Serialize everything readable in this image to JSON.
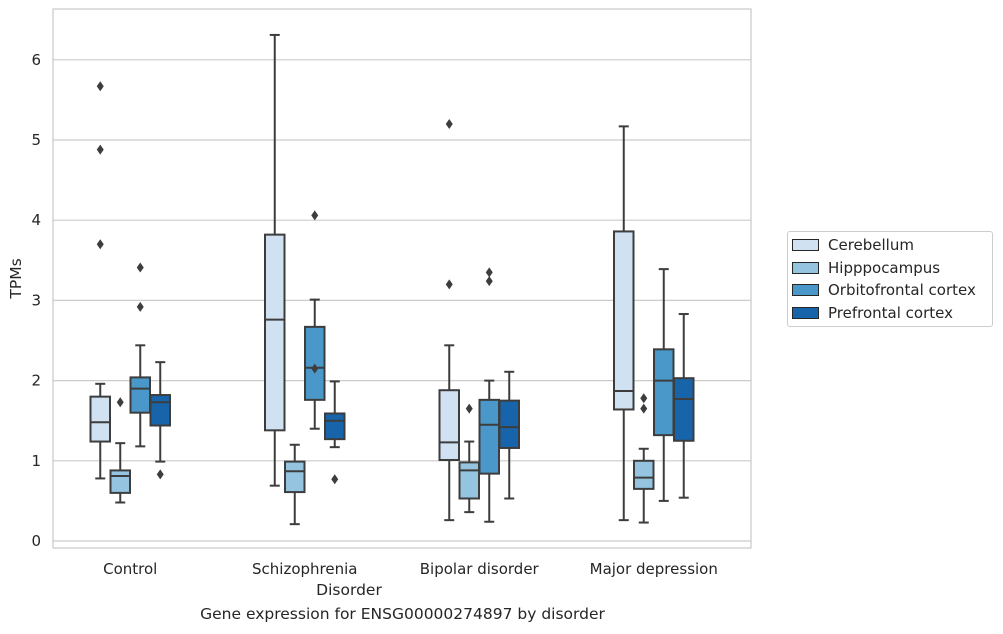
{
  "colors": {
    "Cerebellum": "#d0e1f2",
    "Hipppocampus": "#94c4df",
    "Orbitofrontal cortex": "#4a98c9",
    "Prefrontal cortex": "#1764ab",
    "edge": "#3d3d3d",
    "grid": "#cccccc"
  },
  "caption": "Gene expression for ENSG00000274897 by disorder",
  "chart_data": {
    "type": "box",
    "xlabel": "Disorder",
    "ylabel": "TPMs",
    "ylim": [
      -0.1,
      6.6
    ],
    "yticks": [
      0,
      1,
      2,
      3,
      4,
      5,
      6
    ],
    "grid": true,
    "legend_position": "right",
    "categories": [
      "Control",
      "Schizophrenia",
      "Bipolar disorder",
      "Major depression"
    ],
    "series": [
      {
        "name": "Cerebellum",
        "boxes": [
          {
            "whislo": 0.78,
            "q1": 1.24,
            "med": 1.48,
            "q3": 1.8,
            "whishi": 1.96,
            "fliers": [
              3.7,
              4.88,
              5.67
            ]
          },
          {
            "whislo": 0.69,
            "q1": 1.38,
            "med": 2.76,
            "q3": 3.82,
            "whishi": 6.31,
            "fliers": []
          },
          {
            "whislo": 0.26,
            "q1": 1.01,
            "med": 1.23,
            "q3": 1.88,
            "whishi": 2.44,
            "fliers": [
              3.2,
              5.2
            ]
          },
          {
            "whislo": 0.26,
            "q1": 1.64,
            "med": 1.87,
            "q3": 3.86,
            "whishi": 5.17,
            "fliers": []
          }
        ]
      },
      {
        "name": "Hipppocampus",
        "boxes": [
          {
            "whislo": 0.48,
            "q1": 0.6,
            "med": 0.81,
            "q3": 0.88,
            "whishi": 1.22,
            "fliers": [
              1.73
            ]
          },
          {
            "whislo": 0.21,
            "q1": 0.61,
            "med": 0.87,
            "q3": 0.99,
            "whishi": 1.2,
            "fliers": []
          },
          {
            "whislo": 0.36,
            "q1": 0.53,
            "med": 0.88,
            "q3": 0.98,
            "whishi": 1.24,
            "fliers": [
              1.65
            ]
          },
          {
            "whislo": 0.23,
            "q1": 0.65,
            "med": 0.79,
            "q3": 1.0,
            "whishi": 1.15,
            "fliers": [
              1.65,
              1.78
            ]
          }
        ]
      },
      {
        "name": "Orbitofrontal cortex",
        "boxes": [
          {
            "whislo": 1.18,
            "q1": 1.6,
            "med": 1.9,
            "q3": 2.04,
            "whishi": 2.44,
            "fliers": [
              2.92,
              3.41
            ]
          },
          {
            "whislo": 1.4,
            "q1": 1.76,
            "med": 2.16,
            "q3": 2.67,
            "whishi": 3.01,
            "fliers": [
              2.15,
              4.06
            ]
          },
          {
            "whislo": 0.24,
            "q1": 0.84,
            "med": 1.45,
            "q3": 1.76,
            "whishi": 2.0,
            "fliers": [
              3.24,
              3.35
            ]
          },
          {
            "whislo": 0.5,
            "q1": 1.32,
            "med": 2.0,
            "q3": 2.39,
            "whishi": 3.39,
            "fliers": []
          }
        ]
      },
      {
        "name": "Prefrontal cortex",
        "boxes": [
          {
            "whislo": 0.99,
            "q1": 1.44,
            "med": 1.73,
            "q3": 1.82,
            "whishi": 2.23,
            "fliers": [
              0.83
            ]
          },
          {
            "whislo": 1.17,
            "q1": 1.27,
            "med": 1.5,
            "q3": 1.59,
            "whishi": 1.99,
            "fliers": [
              0.77
            ]
          },
          {
            "whislo": 0.53,
            "q1": 1.16,
            "med": 1.42,
            "q3": 1.75,
            "whishi": 2.11,
            "fliers": []
          },
          {
            "whislo": 0.54,
            "q1": 1.25,
            "med": 1.77,
            "q3": 2.03,
            "whishi": 2.83,
            "fliers": []
          }
        ]
      }
    ]
  }
}
